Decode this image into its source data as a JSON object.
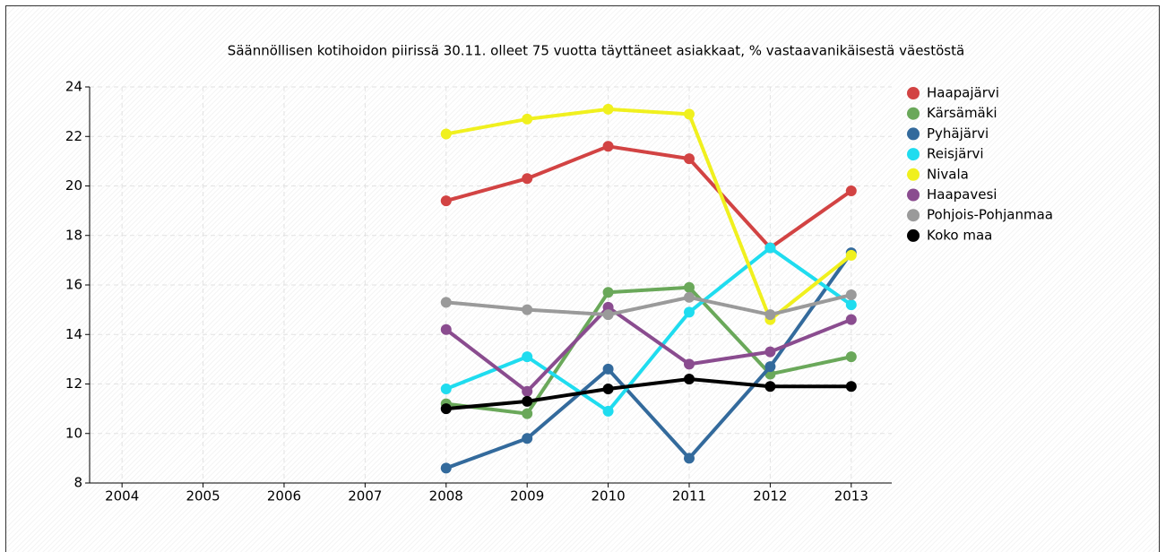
{
  "chart_data": {
    "type": "line",
    "title": "Säännöllisen kotihoidon piirissä 30.11. olleet 75 vuotta täyttäneet asiakkaat, % vastaavanikäisestä väestöstä",
    "x": [
      2008,
      2009,
      2010,
      2011,
      2012,
      2013
    ],
    "xlim": [
      2003.6,
      2013.5
    ],
    "xticks": [
      2004,
      2005,
      2006,
      2007,
      2008,
      2009,
      2010,
      2011,
      2012,
      2013
    ],
    "ylim": [
      8,
      24
    ],
    "yticks": [
      8,
      10,
      12,
      14,
      16,
      18,
      20,
      22,
      24
    ],
    "grid": true,
    "legend": "right",
    "series": [
      {
        "name": "Haapajärvi",
        "color": "#d24343",
        "values": [
          19.4,
          20.3,
          21.6,
          21.1,
          17.5,
          19.8
        ]
      },
      {
        "name": "Kärsämäki",
        "color": "#6aa85a",
        "values": [
          11.2,
          10.8,
          15.7,
          15.9,
          12.4,
          13.1
        ]
      },
      {
        "name": "Pyhäjärvi",
        "color": "#336a9c",
        "values": [
          8.6,
          9.8,
          12.6,
          9.0,
          12.7,
          17.3
        ]
      },
      {
        "name": "Reisjärvi",
        "color": "#1fdcef",
        "values": [
          11.8,
          13.1,
          10.9,
          14.9,
          17.5,
          15.2
        ]
      },
      {
        "name": "Nivala",
        "color": "#f0f01e",
        "values": [
          22.1,
          22.7,
          23.1,
          22.9,
          14.6,
          17.2
        ]
      },
      {
        "name": "Haapavesi",
        "color": "#8a4c8f",
        "values": [
          14.2,
          11.7,
          15.1,
          12.8,
          13.3,
          14.6
        ]
      },
      {
        "name": "Pohjois-Pohjanmaa",
        "color": "#9a9a9a",
        "values": [
          15.3,
          15.0,
          14.8,
          15.5,
          14.8,
          15.6
        ]
      },
      {
        "name": "Koko maa",
        "color": "#000000",
        "values": [
          11.0,
          11.3,
          11.8,
          12.2,
          11.9,
          11.9
        ]
      }
    ]
  }
}
